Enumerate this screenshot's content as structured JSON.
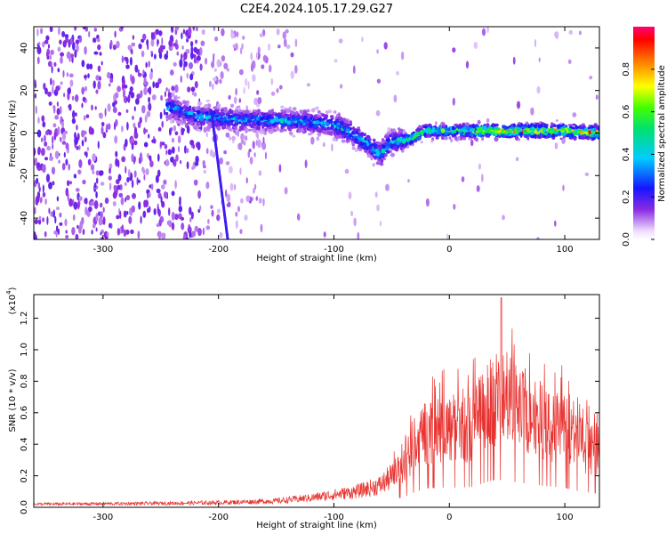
{
  "figure_title": "C2E4.2024.105.17.29.G27",
  "colors": {
    "snr_line": "#e8322f",
    "axis": "#000000",
    "background": "#ffffff"
  },
  "chart_data": [
    {
      "type": "heatmap",
      "xlabel": "Height of straight line (km)",
      "ylabel": "Frequency (Hz)",
      "xlim": [
        -360,
        130
      ],
      "ylim": [
        -50,
        50
      ],
      "xticks": [
        -300,
        -200,
        -100,
        0,
        100
      ],
      "yticks": [
        -40,
        -20,
        0,
        20,
        40
      ],
      "grid": false,
      "colorbar": {
        "label": "Normalized spectral amplitude",
        "range": [
          0,
          1
        ],
        "ticks": [
          0.0,
          0.2,
          0.4,
          0.6,
          0.8
        ],
        "colormap": "rainbow (white-violet-blue-cyan-green-yellow-red-magenta)"
      },
      "ridge": [
        {
          "x": -240,
          "y": 12
        },
        {
          "x": -220,
          "y": 8
        },
        {
          "x": -200,
          "y": 7
        },
        {
          "x": -180,
          "y": 6
        },
        {
          "x": -150,
          "y": 6
        },
        {
          "x": -120,
          "y": 5
        },
        {
          "x": -100,
          "y": 4
        },
        {
          "x": -85,
          "y": 0
        },
        {
          "x": -70,
          "y": -5
        },
        {
          "x": -60,
          "y": -10
        },
        {
          "x": -50,
          "y": -4
        },
        {
          "x": -35,
          "y": -3
        },
        {
          "x": -20,
          "y": 1
        },
        {
          "x": 0,
          "y": 1
        },
        {
          "x": 50,
          "y": 1
        },
        {
          "x": 100,
          "y": 1
        },
        {
          "x": 130,
          "y": 0
        }
      ]
    },
    {
      "type": "line",
      "xlabel": "Height of straight line (km)",
      "ylabel": "SNR (10 * v/v)",
      "y_multiplier": "(x10",
      "y_multiplier_exp": "4",
      "y_multiplier_close": ")",
      "xlim": [
        -360,
        130
      ],
      "ylim": [
        0,
        1.35
      ],
      "xticks": [
        -300,
        -200,
        -100,
        0,
        100
      ],
      "yticks": [
        0.0,
        0.2,
        0.4,
        0.6,
        0.8,
        1.0,
        1.2
      ],
      "grid": false,
      "envelope": [
        {
          "x": -360,
          "y": 0.02
        },
        {
          "x": -250,
          "y": 0.025
        },
        {
          "x": -200,
          "y": 0.03
        },
        {
          "x": -150,
          "y": 0.04
        },
        {
          "x": -120,
          "y": 0.06
        },
        {
          "x": -100,
          "y": 0.08
        },
        {
          "x": -80,
          "y": 0.1
        },
        {
          "x": -60,
          "y": 0.14
        },
        {
          "x": -40,
          "y": 0.25
        },
        {
          "x": -30,
          "y": 0.38
        },
        {
          "x": -20,
          "y": 0.48
        },
        {
          "x": -10,
          "y": 0.5
        },
        {
          "x": 0,
          "y": 0.5
        },
        {
          "x": 10,
          "y": 0.5
        },
        {
          "x": 20,
          "y": 0.52
        },
        {
          "x": 30,
          "y": 0.62
        },
        {
          "x": 40,
          "y": 0.7
        },
        {
          "x": 50,
          "y": 0.68
        },
        {
          "x": 60,
          "y": 0.62
        },
        {
          "x": 70,
          "y": 0.6
        },
        {
          "x": 80,
          "y": 0.55
        },
        {
          "x": 90,
          "y": 0.52
        },
        {
          "x": 100,
          "y": 0.5
        },
        {
          "x": 110,
          "y": 0.42
        },
        {
          "x": 120,
          "y": 0.38
        },
        {
          "x": 130,
          "y": 0.35
        }
      ],
      "peak": {
        "x": 45,
        "y": 1.33
      }
    }
  ]
}
